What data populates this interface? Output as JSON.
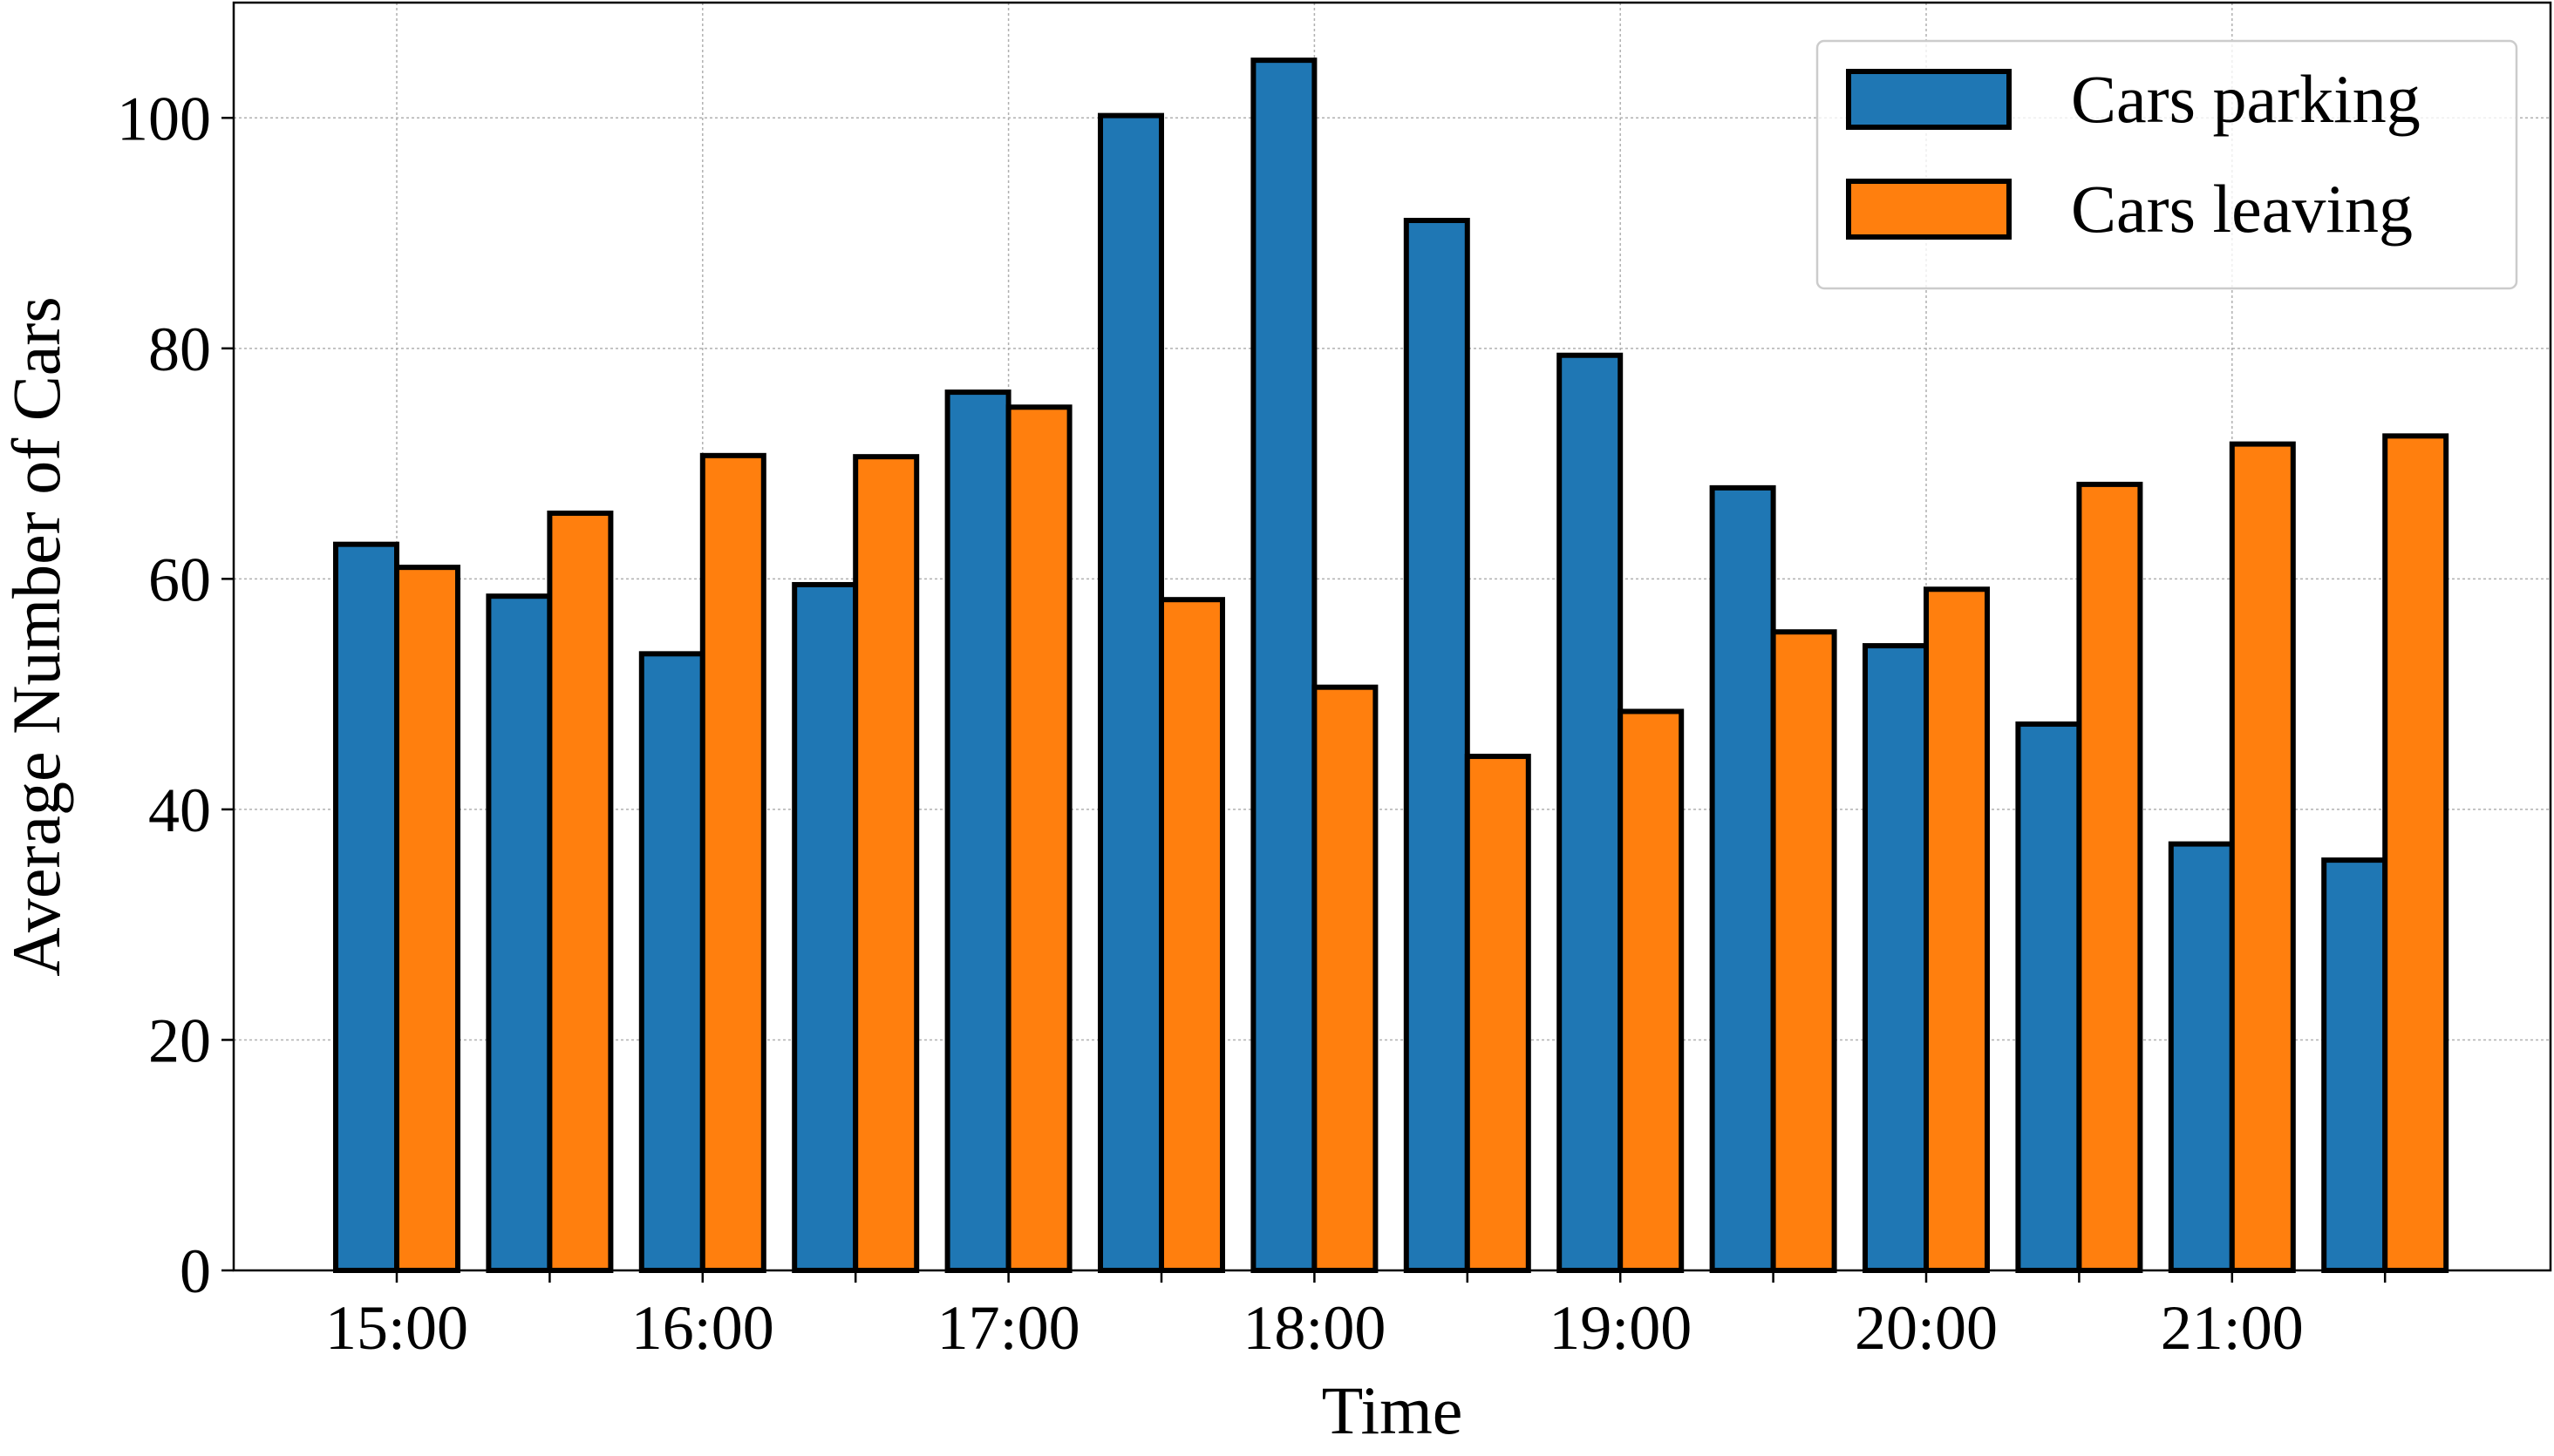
{
  "chart_data": {
    "type": "bar",
    "title": "",
    "xlabel": "Time",
    "ylabel": "Average Number of Cars",
    "ylim": [
      0,
      110
    ],
    "y_ticks": [
      0,
      20,
      40,
      60,
      80,
      100
    ],
    "x_tick_labels": [
      "15:00",
      "16:00",
      "17:00",
      "18:00",
      "19:00",
      "20:00",
      "21:00"
    ],
    "grid": true,
    "legend_position": "top-right",
    "series": [
      {
        "name": "Cars parking",
        "color": "#1f77b4",
        "values": [
          63.0,
          58.5,
          53.5,
          59.5,
          76.2,
          100.2,
          105.0,
          91.1,
          79.4,
          67.9,
          54.2,
          47.4,
          37.0,
          35.6
        ]
      },
      {
        "name": "Cars leaving",
        "color": "#ff7f0e",
        "values": [
          61.0,
          65.7,
          70.7,
          70.6,
          74.9,
          58.2,
          50.6,
          44.6,
          48.5,
          55.4,
          59.1,
          68.2,
          71.7,
          72.4
        ]
      }
    ]
  }
}
